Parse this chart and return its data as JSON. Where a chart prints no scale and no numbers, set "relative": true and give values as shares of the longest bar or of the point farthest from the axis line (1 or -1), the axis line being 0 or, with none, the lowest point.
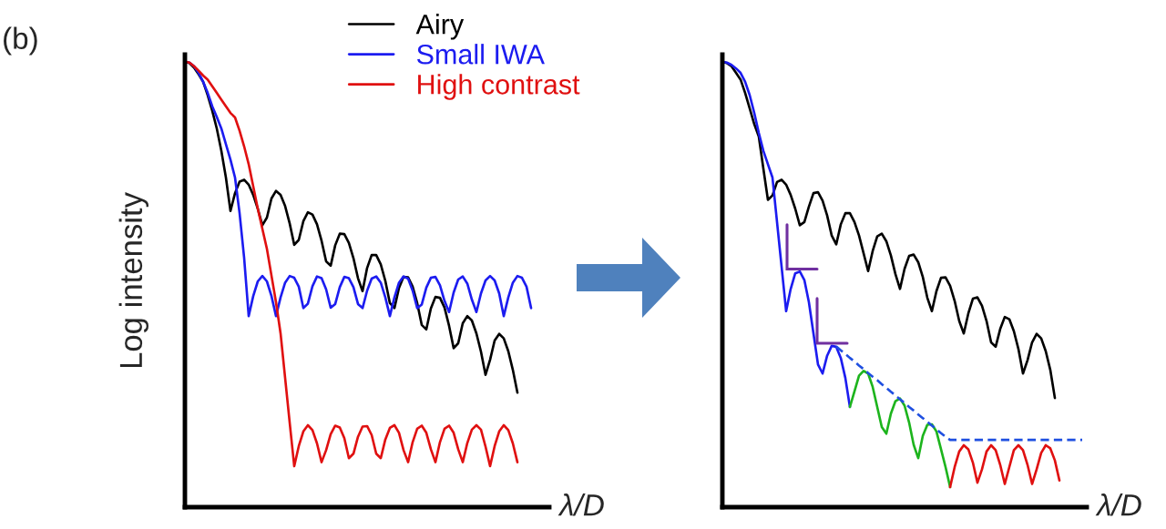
{
  "chart_data": [
    {
      "type": "line",
      "relative": true,
      "xlabel": "λ/D",
      "ylabel": "Log intensity",
      "annotations": [
        "(b)"
      ],
      "legend": "top right",
      "line_style": "solid",
      "categories": [
        null,
        null,
        null,
        null,
        null,
        null,
        null,
        null,
        null,
        null,
        null,
        null,
        null,
        null,
        null,
        null,
        null,
        null,
        null,
        null,
        null,
        null,
        null,
        null,
        null,
        null,
        null,
        null,
        null,
        null,
        null,
        null,
        null,
        null,
        null,
        null,
        null,
        null,
        null,
        null,
        null,
        null,
        null,
        null,
        null,
        null,
        null,
        null,
        null,
        null,
        null,
        null,
        null,
        null,
        null,
        null,
        null,
        null,
        null,
        null,
        null,
        null,
        null,
        null,
        null,
        null,
        null,
        null,
        null,
        null,
        null,
        null,
        null,
        null,
        null,
        null,
        null,
        null,
        null,
        null
      ],
      "series": [
        {
          "name": "Airy",
          "color": "#000000",
          "values": [
            1,
            0.997,
            0.987,
            0.972,
            0.955,
            0.925,
            0.89,
            0.85,
            0.8,
            0.74,
            0.665,
            0.705,
            0.731,
            0.735,
            0.724,
            0.701,
            0.67,
            0.633,
            0.65,
            0.693,
            0.71,
            0.701,
            0.676,
            0.637,
            0.589,
            0.6,
            0.642,
            0.662,
            0.657,
            0.635,
            0.598,
            0.552,
            0.542,
            0.588,
            0.614,
            0.613,
            0.593,
            0.559,
            0.514,
            0.485,
            0.537,
            0.566,
            0.566,
            0.545,
            0.508,
            0.458,
            0.447,
            0.492,
            0.517,
            0.516,
            0.495,
            0.458,
            0.409,
            0.399,
            0.446,
            0.472,
            0.47,
            0.448,
            0.407,
            0.357,
            0.368,
            0.413,
            0.429,
            0.419,
            0.39,
            0.349,
            0.297,
            0.331,
            0.374,
            0.389,
            0.379,
            0.35,
            0.308,
            0.257,
            null,
            null,
            null,
            null,
            null,
            null
          ]
        },
        {
          "name": "Small IWA",
          "color": "#1c1cf0",
          "values": [
            1,
            0.998,
            0.99,
            0.975,
            0.955,
            0.93,
            0.9,
            0.876,
            0.85,
            0.815,
            0.78,
            0.74,
            0.66,
            0.56,
            0.429,
            0.474,
            0.507,
            0.519,
            0.507,
            0.474,
            0.429,
            0.471,
            0.504,
            0.519,
            0.515,
            0.495,
            0.447,
            0.457,
            0.496,
            0.518,
            0.514,
            0.489,
            0.448,
            0.456,
            0.494,
            0.517,
            0.514,
            0.494,
            0.456,
            0.447,
            0.486,
            0.513,
            0.518,
            0.504,
            0.471,
            0.429,
            0.471,
            0.504,
            0.518,
            0.513,
            0.486,
            0.447,
            0.455,
            0.493,
            0.515,
            0.517,
            0.498,
            0.463,
            0.438,
            0.482,
            0.511,
            0.518,
            0.502,
            0.466,
            0.438,
            0.48,
            0.509,
            0.519,
            0.509,
            0.48,
            0.429,
            0.471,
            0.504,
            0.519,
            0.515,
            0.495,
            0.447,
            null,
            null,
            null
          ]
        },
        {
          "name": "High contrast",
          "color": "#e01010",
          "values": [
            1,
            0.998,
            0.99,
            0.98,
            0.969,
            0.96,
            0.945,
            0.93,
            0.915,
            0.9,
            0.885,
            0.875,
            0.845,
            0.81,
            0.77,
            0.72,
            0.67,
            0.625,
            0.58,
            0.52,
            0.46,
            0.39,
            0.29,
            0.19,
            0.092,
            0.137,
            0.17,
            0.184,
            0.173,
            0.143,
            0.101,
            0.128,
            0.164,
            0.183,
            0.179,
            0.155,
            0.11,
            0.12,
            0.158,
            0.181,
            0.182,
            0.162,
            0.12,
            0.11,
            0.152,
            0.178,
            0.184,
            0.167,
            0.128,
            0.101,
            0.146,
            0.176,
            0.183,
            0.167,
            0.13,
            0.101,
            0.146,
            0.176,
            0.183,
            0.167,
            0.13,
            0.101,
            0.144,
            0.174,
            0.184,
            0.174,
            0.136,
            0.092,
            0.137,
            0.17,
            0.184,
            0.173,
            0.143,
            0.101,
            null,
            null,
            null,
            null,
            null,
            null
          ]
        }
      ]
    },
    {
      "type": "line",
      "relative": true,
      "xlabel": "λ/D",
      "line_style": "solid",
      "categories": [
        null,
        null,
        null,
        null,
        null,
        null,
        null,
        null,
        null,
        null,
        null,
        null,
        null,
        null,
        null,
        null,
        null,
        null,
        null,
        null,
        null,
        null,
        null,
        null,
        null,
        null,
        null,
        null,
        null,
        null,
        null,
        null,
        null,
        null,
        null,
        null,
        null,
        null,
        null,
        null,
        null,
        null,
        null,
        null,
        null,
        null,
        null,
        null,
        null,
        null,
        null,
        null,
        null,
        null,
        null,
        null,
        null,
        null,
        null,
        null,
        null,
        null,
        null,
        null,
        null,
        null,
        null,
        null,
        null,
        null,
        null,
        null,
        null,
        null,
        null,
        null,
        null,
        null,
        null,
        null
      ],
      "series": [
        {
          "color": "#000000",
          "values": [
            1,
            0.997,
            0.99,
            0.975,
            0.96,
            0.93,
            0.895,
            0.86,
            0.832,
            0.76,
            0.69,
            0.7,
            0.73,
            0.735,
            0.724,
            0.701,
            0.67,
            0.633,
            0.64,
            0.675,
            0.705,
            0.707,
            0.688,
            0.655,
            0.61,
            0.59,
            0.635,
            0.66,
            0.66,
            0.64,
            0.61,
            0.57,
            0.53,
            0.575,
            0.608,
            0.614,
            0.597,
            0.565,
            0.523,
            0.49,
            0.535,
            0.564,
            0.567,
            0.55,
            0.517,
            0.47,
            0.44,
            0.485,
            0.515,
            0.516,
            0.497,
            0.463,
            0.418,
            0.39,
            0.435,
            0.468,
            0.471,
            0.452,
            0.418,
            0.37,
            0.36,
            0.4,
            0.427,
            0.422,
            0.395,
            0.355,
            0.3,
            0.33,
            0.37,
            0.389,
            0.379,
            0.35,
            0.308,
            0.245,
            null,
            null,
            null,
            null,
            null,
            null
          ]
        },
        {
          "color": "#1c1cf0",
          "values": [
            1,
            0.998,
            0.993,
            0.985,
            0.975,
            0.955,
            0.925,
            0.885,
            0.84,
            0.8,
            0.77,
            0.74,
            0.64,
            0.54,
            0.44,
            0.49,
            0.525,
            0.529,
            0.51,
            0.46,
            0.39,
            0.32,
            0.3,
            0.34,
            0.362,
            0.36,
            0.335,
            0.29,
            0.225,
            null,
            null,
            null,
            null,
            null,
            null,
            null,
            null,
            null,
            null,
            null,
            null,
            null,
            null,
            null,
            null,
            null,
            null,
            null,
            null,
            null,
            null,
            null,
            null,
            null,
            null,
            null,
            null,
            null,
            null,
            null,
            null,
            null,
            null,
            null,
            null,
            null,
            null,
            null,
            null,
            null,
            null,
            null,
            null,
            null,
            null,
            null,
            null,
            null,
            null,
            null
          ]
        },
        {
          "color": "#1db41d",
          "values": [
            null,
            null,
            null,
            null,
            null,
            null,
            null,
            null,
            null,
            null,
            null,
            null,
            null,
            null,
            null,
            null,
            null,
            null,
            null,
            null,
            null,
            null,
            null,
            null,
            null,
            null,
            null,
            null,
            0.225,
            0.26,
            0.295,
            0.306,
            0.3,
            0.27,
            0.225,
            0.18,
            0.165,
            0.21,
            0.238,
            0.244,
            0.228,
            0.19,
            0.14,
            0.11,
            0.16,
            0.185,
            0.186,
            0.17,
            0.13,
            0.09,
            0.045,
            null,
            null,
            null,
            null,
            null,
            null,
            null,
            null,
            null,
            null,
            null,
            null,
            null,
            null,
            null,
            null,
            null,
            null,
            null,
            null,
            null,
            null,
            null,
            null,
            null,
            null,
            null,
            null,
            null
          ]
        },
        {
          "color": "#e01010",
          "values": [
            null,
            null,
            null,
            null,
            null,
            null,
            null,
            null,
            null,
            null,
            null,
            null,
            null,
            null,
            null,
            null,
            null,
            null,
            null,
            null,
            null,
            null,
            null,
            null,
            null,
            null,
            null,
            null,
            null,
            null,
            null,
            null,
            null,
            null,
            null,
            null,
            null,
            null,
            null,
            null,
            null,
            null,
            null,
            null,
            null,
            null,
            null,
            null,
            null,
            null,
            0.045,
            0.09,
            0.125,
            0.139,
            0.13,
            0.1,
            0.055,
            0.085,
            0.125,
            0.139,
            0.128,
            0.095,
            0.052,
            0.09,
            0.128,
            0.139,
            0.128,
            0.095,
            0.052,
            0.085,
            0.122,
            0.139,
            0.132,
            0.105,
            0.06,
            null,
            null,
            null,
            null,
            null
          ]
        },
        {
          "color": "#1f4fe0",
          "line_style": "dashed",
          "values": [
            null,
            null,
            null,
            null,
            null,
            null,
            null,
            null,
            null,
            null,
            null,
            null,
            null,
            null,
            null,
            null,
            null,
            null,
            null,
            null,
            null,
            null,
            null,
            null,
            null,
            0.361,
            0.352,
            0.344,
            0.335,
            0.327,
            0.318,
            0.31,
            0.301,
            0.293,
            0.285,
            0.276,
            0.268,
            0.259,
            0.251,
            0.242,
            0.234,
            0.225,
            0.217,
            0.208,
            0.2,
            0.192,
            0.183,
            0.175,
            0.166,
            0.158,
            0.151,
            0.151,
            0.151,
            0.151,
            0.151,
            0.151,
            0.151,
            0.151,
            0.151,
            0.151,
            0.151,
            0.151,
            0.151,
            0.151,
            0.151,
            0.151,
            0.151,
            0.151,
            0.151,
            0.151,
            0.151,
            0.151,
            0.151,
            0.151,
            0.151,
            0.151,
            0.151,
            0.151,
            0.151,
            0.151
          ]
        }
      ]
    }
  ]
}
